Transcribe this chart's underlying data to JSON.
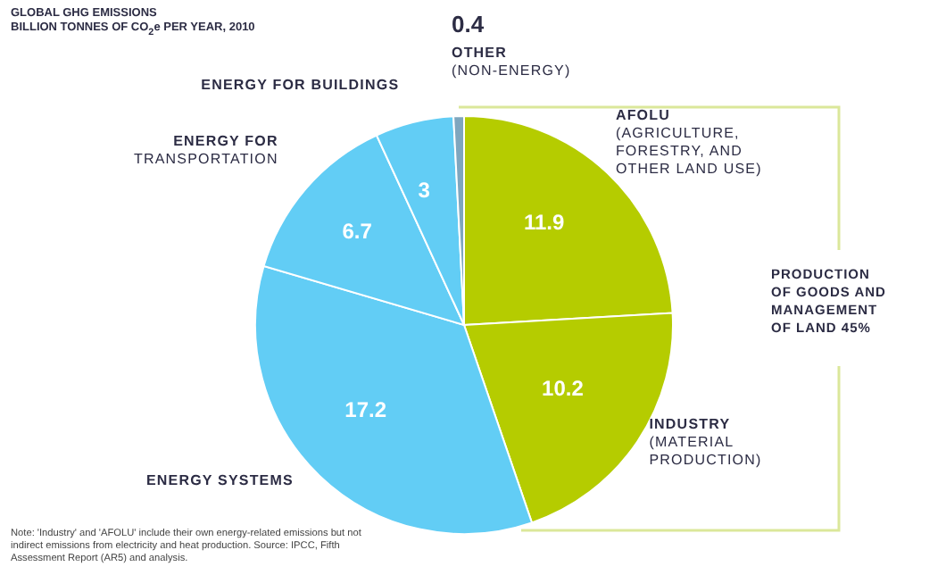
{
  "chart_data": {
    "type": "pie",
    "title": "GLOBAL GHG EMISSIONS",
    "subtitle": "BILLION TONNES OF CO$_{2}$e PER YEAR, 2010",
    "categories": [
      "AFOLU\n(AGRICULTURE,\nFORESTRY, AND\nOTHER LAND USE)",
      "INDUSTRY\n(MATERIAL\nPRODUCTION)",
      "ENERGY SYSTEMS",
      "ENERGY FOR\nTRANSPORTATION",
      "ENERGY FOR BUILDINGS",
      "OTHER\n(NON-ENERGY)"
    ],
    "values": [
      11.9,
      10.2,
      17.2,
      6.7,
      3,
      0.4
    ],
    "colors": [
      "#b5cc00",
      "#b5cc00",
      "#62cdf5",
      "#62cdf5",
      "#62cdf5",
      "#7fa6be"
    ],
    "data_labels": true,
    "legend": false,
    "annotations": [
      "PRODUCTION OF GOODS AND MANAGEMENT OF LAND 45%",
      "Note: 'Industry' and 'AFOLU' include their own energy-related emissions but not indirect emissions from electricity and heat production. Source: IPCC, Fifth Assessment Report (AR5) and analysis."
    ]
  }
}
